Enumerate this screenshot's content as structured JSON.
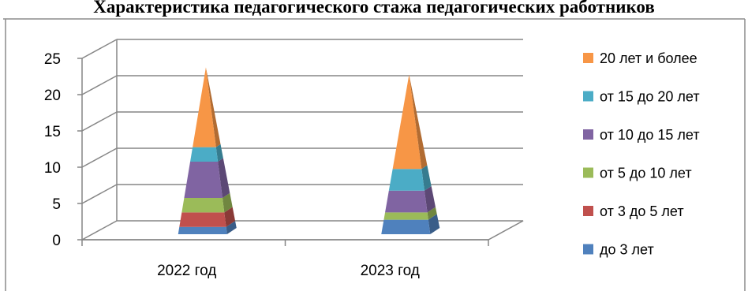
{
  "chart_data": {
    "type": "bar",
    "subtype": "stacked-3d-pyramid",
    "title": "Характеристика педагогического стажа педагогических работников",
    "categories": [
      "2022 год",
      "2023 год"
    ],
    "series": [
      {
        "name": "до 3 лет",
        "color": "#4F81BD",
        "values": [
          1,
          2
        ]
      },
      {
        "name": "от 3 до 5 лет",
        "color": "#C0504D",
        "values": [
          2,
          0
        ]
      },
      {
        "name": "от 5 до 10 лет",
        "color": "#9BBB59",
        "values": [
          2,
          1
        ]
      },
      {
        "name": "от 10 до 15 лет",
        "color": "#8064A2",
        "values": [
          5,
          3
        ]
      },
      {
        "name": "от 15 до 20 лет",
        "color": "#4BACC6",
        "values": [
          2,
          3
        ]
      },
      {
        "name": "20 лет и более",
        "color": "#F79646",
        "values": [
          11,
          13
        ]
      }
    ],
    "ylim": [
      0,
      25
    ],
    "yticks": [
      0,
      5,
      10,
      15,
      20,
      25
    ],
    "grid": true,
    "legend_position": "right"
  }
}
